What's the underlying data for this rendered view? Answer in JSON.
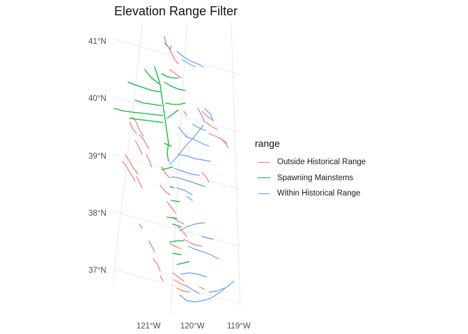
{
  "title": "Elevation Range Filter",
  "lat_labels": [
    "41°N",
    "40°N",
    "39°N",
    "38°N",
    "37°N"
  ],
  "lon_labels": [
    "121°W",
    "120°W",
    "119°W"
  ],
  "legend": {
    "title": "range",
    "items": [
      {
        "label": "Outside Historical Range",
        "color": "#F8766D"
      },
      {
        "label": "Spawning Mainstems",
        "color": "#00BA38"
      },
      {
        "label": "Within Historical Range",
        "color": "#619CFF"
      }
    ]
  }
}
